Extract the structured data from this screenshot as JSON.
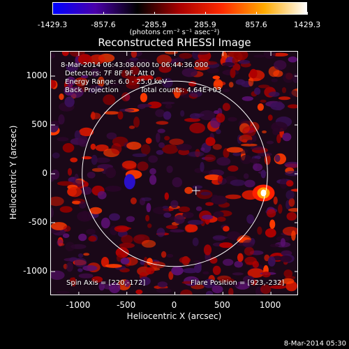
{
  "colorbar": {
    "ticks": [
      "-1429.3",
      "-857.6",
      "-285.9",
      "285.9",
      "857.6",
      "1429.3"
    ],
    "tick_values": [
      -1429.3,
      -857.6,
      -285.9,
      285.9,
      857.6,
      1429.3
    ],
    "range": [
      -1429.3,
      1429.3
    ],
    "units": "(photons cm⁻² s⁻¹ asec⁻²)",
    "colors": [
      "#0000ff",
      "#4a00aa",
      "#000000",
      "#aa0000",
      "#ff2a00",
      "#ffaa00",
      "#ffffff"
    ]
  },
  "title": "Reconstructed RHESSI Image",
  "info": {
    "time_range": "8-Mar-2014 06:43:08.000 to 06:44:36.000",
    "detectors": "Detectors: 7F 8F 9F, Att 0",
    "energy": "Energy Range: 6.0 - 25.0 keV",
    "method": "Back Projection",
    "counts": "Total counts: 4.64E+03",
    "spin_axis": "Spin Axis = [220,-172]",
    "flare_position": "Flare Position = [923,-232]"
  },
  "axes": {
    "xlabel": "Heliocentric X (arcsec)",
    "ylabel": "Heliocentric Y (arcsec)",
    "x_ticks": [
      "-1000",
      "-500",
      "0",
      "500",
      "1000"
    ],
    "y_ticks": [
      "1000",
      "500",
      "0",
      "-500",
      "-1000"
    ],
    "x_tick_values": [
      -1000,
      -500,
      0,
      500,
      1000
    ],
    "y_tick_values": [
      1000,
      500,
      0,
      -500,
      -1000
    ],
    "xlim": [
      -1290,
      1290
    ],
    "ylim": [
      -1250,
      1250
    ]
  },
  "image_features": {
    "solar_limb_radius_arcsec": 965,
    "spin_axis_marker": [
      220,
      -172
    ],
    "flare_position": [
      923,
      -232
    ],
    "negative_spot": [
      -470,
      -80
    ]
  },
  "timestamp": "8-Mar-2014 05:30"
}
